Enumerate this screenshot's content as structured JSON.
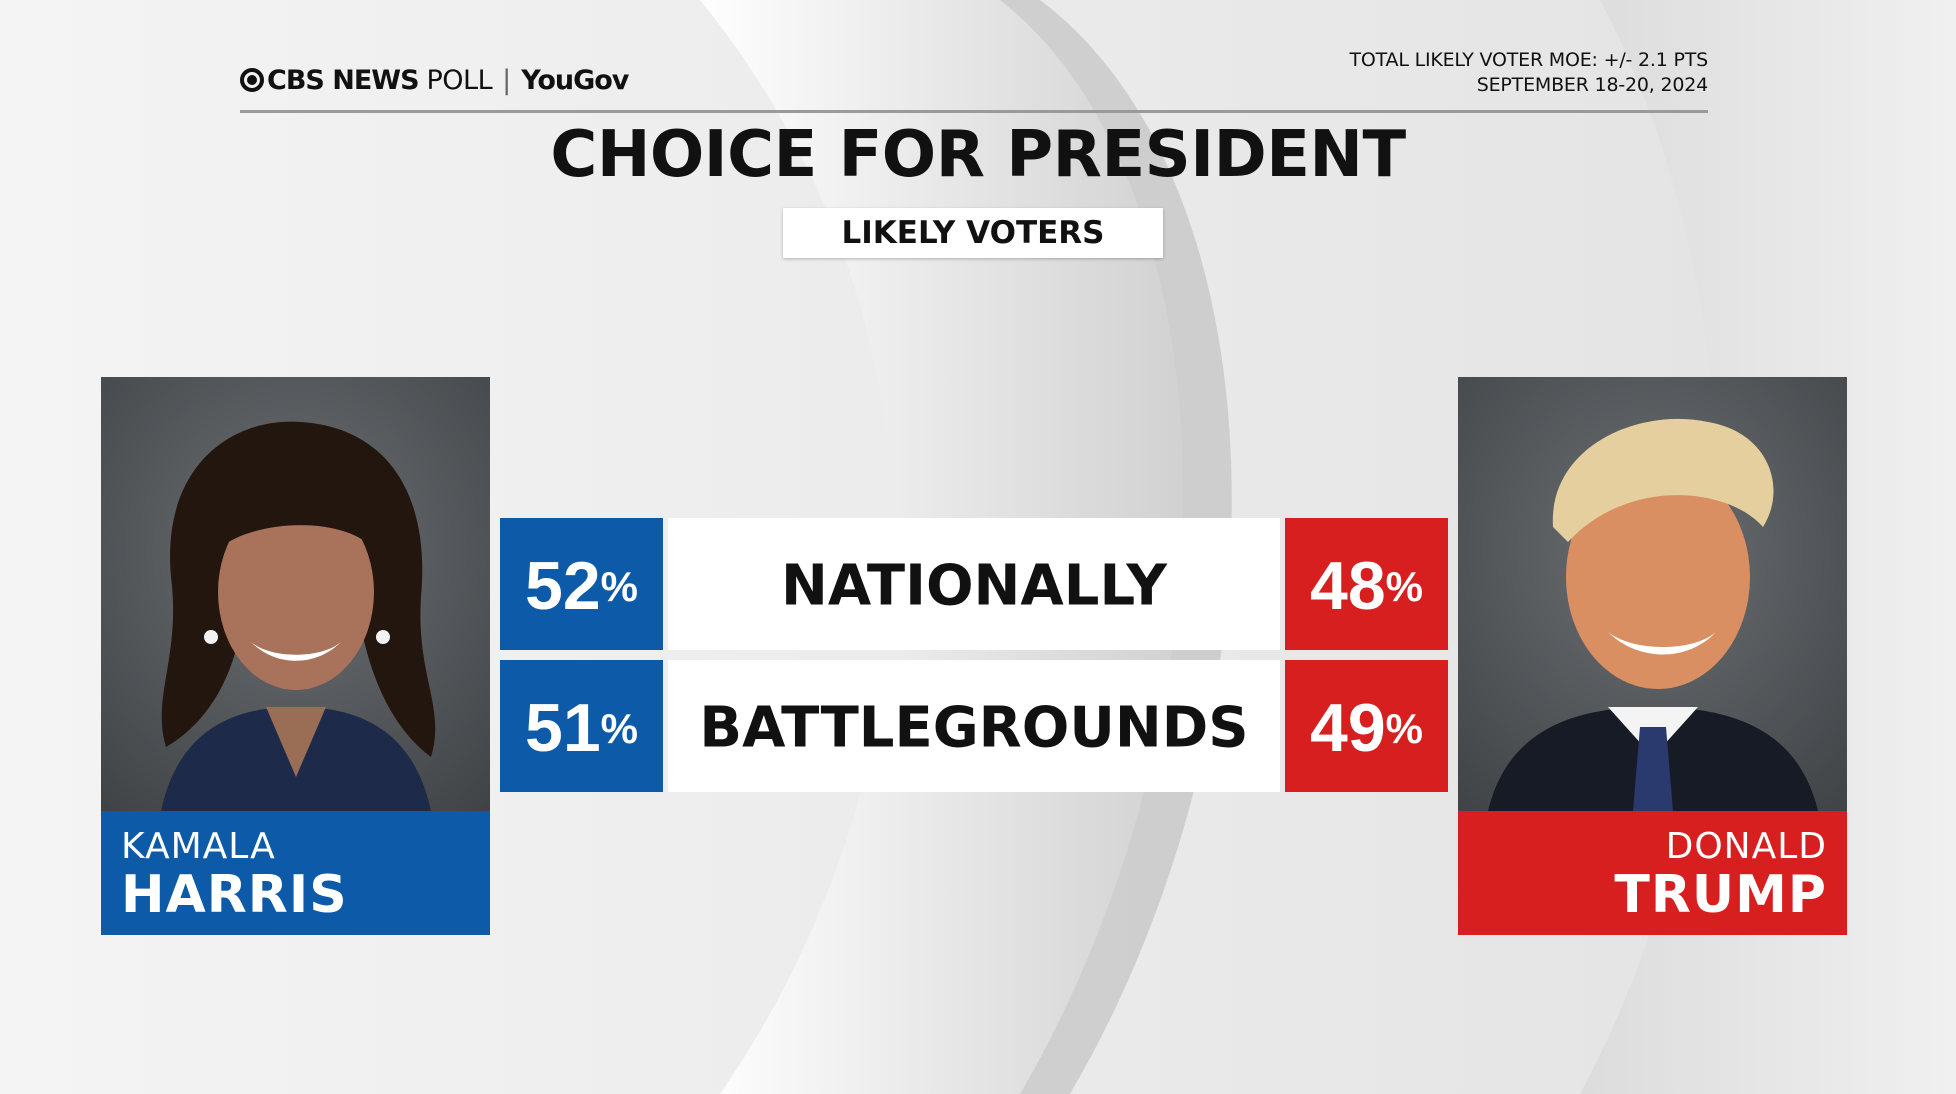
{
  "header": {
    "brand_network": "CBS NEWS",
    "brand_poll": "POLL",
    "brand_partner": "YouGov",
    "moe": "TOTAL LIKELY VOTER MOE: +/- 2.1 PTS",
    "dates": "SEPTEMBER 18-20, 2024"
  },
  "title": "CHOICE FOR PRESIDENT",
  "subtitle": "LIKELY VOTERS",
  "candidates": {
    "left": {
      "first": "KAMALA",
      "last": "HARRIS",
      "color": "#0d5aa8"
    },
    "right": {
      "first": "DONALD",
      "last": "TRUMP",
      "color": "#d71f1f"
    }
  },
  "chart_data": {
    "type": "table",
    "title": "CHOICE FOR PRESIDENT",
    "subtitle": "LIKELY VOTERS",
    "columns": [
      "HARRIS",
      "",
      "TRUMP"
    ],
    "rows": [
      {
        "label": "NATIONALLY",
        "harris": 52,
        "trump": 48
      },
      {
        "label": "BATTLEGROUNDS",
        "harris": 51,
        "trump": 49
      }
    ],
    "unit": "%",
    "colors": {
      "harris": "#0d5aa8",
      "trump": "#d71f1f"
    }
  }
}
